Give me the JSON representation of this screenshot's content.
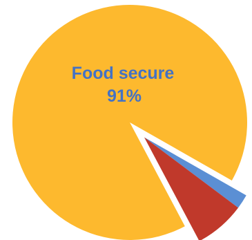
{
  "chart_data": {
    "type": "pie",
    "title": "",
    "slices": [
      {
        "name": "Food secure",
        "value": 91,
        "value_label": "91%",
        "color": "#FDB92E",
        "exploded": false,
        "show_label": true,
        "label_color": "#4472C4"
      },
      {
        "name": "",
        "value": 2,
        "value_label": "",
        "color": "#5B8FD4",
        "exploded": true,
        "show_label": false
      },
      {
        "name": "",
        "value": 7,
        "value_label": "",
        "color": "#C0392B",
        "exploded": true,
        "show_label": false
      }
    ],
    "legend": "none"
  }
}
